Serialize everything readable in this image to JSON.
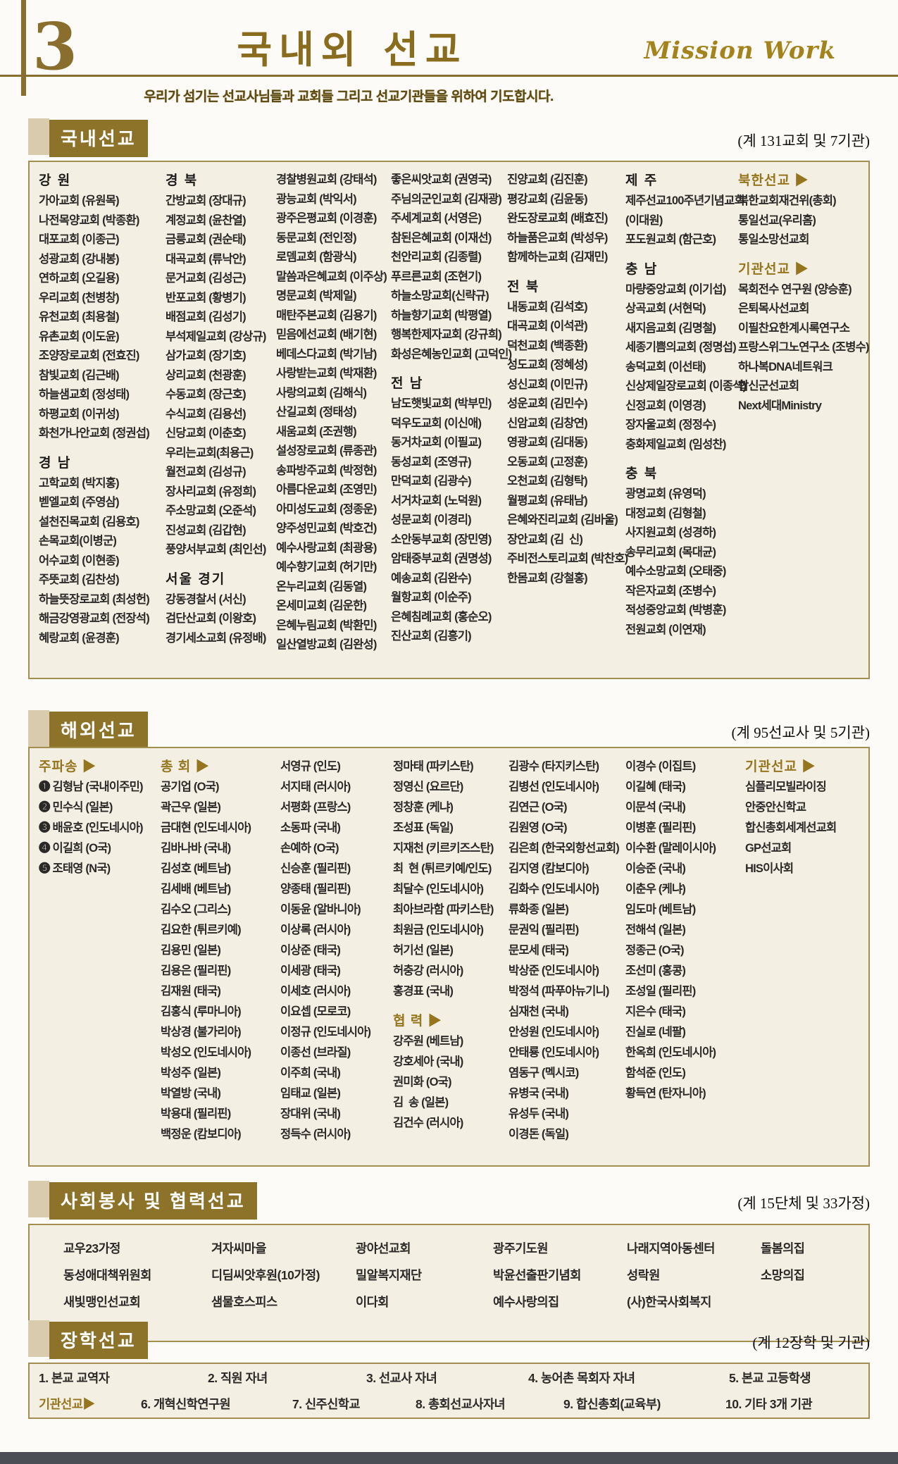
{
  "page": {
    "number": "3",
    "title": "국내외 선교",
    "title_en": "Mission Work",
    "subtitle": "우리가 섬기는 선교사님들과 교회들 그리고 선교기관들을 위하여 기도합시다."
  },
  "colors": {
    "gold": "#8a6e2e",
    "label_bg": "#8d7229",
    "box_bg": "#f3efe3",
    "box_border": "#a58e52"
  },
  "sections": {
    "domestic": {
      "label": "국내선교",
      "count": "(계 131교회 및 7기관)",
      "columns": [
        [
          {
            "header": "강 원",
            "type": "region",
            "items": [
              "가아교회 (유원목)",
              "나전목양교회 (박종환)",
              "대포교회 (이종근)",
              "성광교회 (강내봉)",
              "연하교회 (오길용)",
              "우리교회 (천병창)",
              "유천교회 (최용철)",
              "유촌교회 (이도윤)",
              "조양장로교회 (전효진)",
              "참빛교회 (김근배)",
              "하늘샘교회 (정성태)",
              "하평교회 (이귀성)",
              "화천가나안교회 (정권섭)"
            ]
          },
          {
            "header": "경 남",
            "type": "region",
            "items": [
              "고학교회 (박지홍)",
              "벧엘교회 (주영삼)",
              "설천진목교회 (김용호)",
              "손목교회(이병군)",
              "어수교회 (이현종)",
              "주뜻교회 (김찬성)",
              "하늘뜻장로교회 (최성헌)",
              "해금강영광교회 (전장석)",
              "혜랑교회 (윤경훈)"
            ]
          }
        ],
        [
          {
            "header": "경 북",
            "type": "region",
            "items": [
              "간방교회 (장대규)",
              "계정교회 (윤찬열)",
              "금릉교회 (권순태)",
              "대곡교회 (류낙안)",
              "문거교회 (김성근)",
              "반포교회 (황병기)",
              "배점교회 (김성기)",
              "부석제일교회 (강상규)",
              "삼가교회 (장기호)",
              "상리교회 (천광훈)",
              "수동교회 (장근호)",
              "수식교회 (김용선)",
              "신당교회 (이춘호)",
              "우리는교회(최용근)",
              "월전교회 (김성규)",
              "장사리교회 (유정희)",
              "주소망교회 (오준석)",
              "진성교회 (김갑현)",
              "풍양서부교회 (최인선)"
            ]
          },
          {
            "header": "서울 경기",
            "type": "region",
            "items": [
              "강동경찰서 (서신)",
              "검단산교회 (이왕호)",
              "경기세소교회 (유정배)"
            ]
          }
        ],
        [
          {
            "items": [
              "경찰병원교회 (강태석)",
              "광능교회 (박익서)",
              "광주은평교회 (이경훈)",
              "동문교회 (전인정)",
              "로뎀교회 (함광식)",
              "말씀과은혜교회 (이주상)",
              "명문교회 (박제일)",
              "매탄주본교회 (김용기)",
              "믿음에선교회 (배기현)",
              "베데스다교회 (박기남)",
              "사랑받는교회 (박재환)",
              "사랑의교회 (김해식)",
              "산길교회 (정태성)",
              "새움교회 (조권행)",
              "설성장로교회 (류종관)",
              "송파방주교회 (박정현)",
              "아름다운교회 (조영민)",
              "아미성도교회 (정종운)",
              "양주성민교회 (박호건)",
              "예수사랑교회 (최광용)",
              "예수향기교회 (허기만)",
              "온누리교회 (김동열)",
              "온세미교회 (김운한)",
              "은혜누림교회 (박환민)",
              "일산열방교회 (김완성)"
            ]
          }
        ],
        [
          {
            "items": [
              "좋은씨앗교회 (권영국)",
              "주님의군인교회 (김재광)",
              "주세계교회 (서영은)",
              "참된은혜교회 (이재선)",
              "천안리교회 (김종렬)",
              "푸르른교회 (조현기)",
              "하늘소망교회(신략규)",
              "하늘향기교회 (박평열)",
              "행복한제자교회 (강규희)",
              "화성은혜농인교회 (고덕인)"
            ]
          },
          {
            "header": "전 남",
            "type": "region",
            "items": [
              "남도햇빛교회 (박부민)",
              "덕우도교회 (이신애)",
              "동거차교회 (이필교)",
              "동성교회 (조영규)",
              "만덕교회 (김광수)",
              "서거차교회 (노덕원)",
              "성문교회 (이경리)",
              "소안동부교회 (장민영)",
              "암태중부교회 (권명성)",
              "예송교회 (김완수)",
              "월항교회 (이순주)",
              "은혜침례교회 (홍순오)",
              "진산교회 (김흥기)"
            ]
          }
        ],
        [
          {
            "items": [
              "진양교회 (김진훈)",
              "평강교회 (김윤동)",
              "완도장로교회 (배효진)",
              "하늘품은교회 (박성우)",
              "함께하는교회 (김재민)"
            ]
          },
          {
            "header": "전 북",
            "type": "region",
            "items": [
              "내동교회 (김석호)",
              "대곡교회 (이석관)",
              "덕천교회 (백종환)",
              "성도교회 (정혜성)",
              "성신교회 (이민규)",
              "성운교회 (김민수)",
              "신암교회 (김창연)",
              "영광교회 (김대동)",
              "오동교회 (고정훈)",
              "오천교회 (김형탁)",
              "월평교회 (유태남)",
              "은혜와진리교회 (김바울)",
              "장안교회 (김  신)",
              "주비전스토리교회 (박찬호)",
              "한몸교회 (강철홍)"
            ]
          }
        ],
        [
          {
            "header": "제 주",
            "type": "region",
            "items": [
              "제주선교100주년기념교회",
              "(이대원)",
              "포도원교회 (함근호)"
            ]
          },
          {
            "header": "충 남",
            "type": "region",
            "items": [
              "마량중앙교회 (이기섭)",
              "상곡교회 (서현덕)",
              "새지음교회 (김명철)",
              "세종기쁨의교회 (정명섭)",
              "송덕교회 (이선태)",
              "신상제일장로교회 (이종석)",
              "신정교회 (이영경)",
              "장자울교회 (정정수)",
              "충화제일교회 (임성찬)"
            ]
          },
          {
            "header": "충 북",
            "type": "region",
            "items": [
              "광명교회 (유영덕)",
              "대정교회 (김형철)",
              "사지원교회 (성경하)",
              "송무리교회 (목대균)",
              "예수소망교회 (오태중)",
              "작은자교회 (조병수)",
              "적성중앙교회 (박병훈)",
              "전원교회 (이연재)"
            ]
          }
        ],
        [
          {
            "header": "북한선교 ▶",
            "type": "gold",
            "items": [
              "북한교회재건위(총회)",
              "통일선교(우리홈)",
              "통일소망선교회"
            ]
          },
          {
            "header": "기관선교 ▶",
            "type": "gold",
            "items": [
              "목회전수 연구원 (양승훈)",
              "은퇴목사선교회",
              "이필찬요한계시록연구소",
              "프랑스위그노연구소 (조병수)",
              "하나복DNA네트워크",
              "합신군선교회",
              "Next세대Ministry"
            ]
          }
        ]
      ]
    },
    "overseas": {
      "label": "해외선교",
      "count": "(계 95선교사 및 5기관)",
      "columns": [
        [
          {
            "header": "주파송 ▶",
            "type": "gold",
            "items": [
              "❶ 김형남 (국내이주민)",
              "❷ 민수식 (일본)",
              "❸ 배윤호 (인도네시아)",
              "❹ 이길희 (O국)",
              "❺ 조태영 (N국)"
            ]
          }
        ],
        [
          {
            "header": "총 회 ▶",
            "type": "gold",
            "items": [
              "공기업 (O국)",
              "곽근우 (일본)",
              "금대현 (인도네시아)",
              "김바나바 (국내)",
              "김성호 (베트남)",
              "김세배 (베트남)",
              "김수오 (그리스)",
              "김요한 (튀르키예)",
              "김용민 (일본)",
              "김용은 (필리핀)",
              "김재원 (태국)",
              "김홍식 (루마니아)",
              "박상경 (불가리아)",
              "박성오 (인도네시아)",
              "박성주 (일본)",
              "박열방 (국내)",
              "박용대 (필리핀)",
              "백정운 (캄보디아)"
            ]
          }
        ],
        [
          {
            "items": [
              "서영규 (인도)",
              "서지태 (러시아)",
              "서평화 (프랑스)",
              "소동파 (국내)",
              "손예하 (O국)",
              "신승훈 (필리핀)",
              "양종태 (필리핀)",
              "이동윤 (알바니아)",
              "이상록 (러시아)",
              "이상준 (태국)",
              "이세광 (태국)",
              "이세호 (러시아)",
              "이요셉 (모로코)",
              "이정규 (인도네시아)",
              "이종선 (브라질)",
              "이주희 (국내)",
              "임태교 (일본)",
              "장대위 (국내)",
              "정득수 (러시아)"
            ]
          }
        ],
        [
          {
            "items": [
              "정마태 (파키스탄)",
              "정영신 (요르단)",
              "정창훈 (케냐)",
              "조성표 (독일)",
              "지재천 (키르키즈스탄)",
              "최  현 (튀르키예/인도)",
              "최달수 (인도네시아)",
              "최아브라함 (파키스탄)",
              "최원금 (인도네시아)",
              "허기선 (일본)",
              "허충강 (러시아)",
              "홍경표 (국내)"
            ]
          },
          {
            "header": "협 력 ▶",
            "type": "gold",
            "items": [
              "강주원 (베트남)",
              "강호세아 (국내)",
              "권미화 (O국)",
              "김  송 (일본)",
              "김건수 (러시아)"
            ]
          }
        ],
        [
          {
            "items": [
              "김광수 (타지키스탄)",
              "김병선 (인도네시아)",
              "김연근 (O국)",
              "김원영 (O국)",
              "김은희 (한국외항선교회)",
              "김지영 (캄보디아)",
              "김화수 (인도네시아)",
              "류화종 (일본)",
              "문권익 (필리핀)",
              "문모세 (태국)",
              "박상준 (인도네시아)",
              "박정석 (파푸아뉴기니)",
              "심재천 (국내)",
              "안성원 (인도네시아)",
              "안태룡 (인도네시아)",
              "염동구 (멕시코)",
              "유병국 (국내)",
              "유성두 (국내)",
              "이경돈 (독일)"
            ]
          }
        ],
        [
          {
            "items": [
              "이경수 (이집트)",
              "이길혜 (태국)",
              "이문석 (국내)",
              "이병훈 (필리핀)",
              "이수환 (말레이시아)",
              "이승준 (국내)",
              "이춘우 (케냐)",
              "임도마 (베트남)",
              "전해석 (일본)",
              "정종근 (O국)",
              "조선미 (홍콩)",
              "조성일 (필리핀)",
              "지은수 (태국)",
              "진실로 (네팔)",
              "한옥희 (인도네시아)",
              "함석준 (인도)",
              "황득연 (탄자니아)"
            ]
          }
        ],
        [
          {
            "header": "기관선교 ▶",
            "type": "gold",
            "items": [
              "심플리모빌라이징",
              "안중안신학교",
              "합신총회세계선교회",
              "GP선교회",
              "HIS이사회"
            ]
          }
        ]
      ]
    },
    "social": {
      "label": "사회봉사 및 협력선교",
      "count": "(계 15단체 및 33가정)",
      "columns": [
        [
          {
            "items": [
              "교우23가정",
              "동성애대책위원회",
              "새빛맹인선교회"
            ]
          }
        ],
        [
          {
            "items": [
              "겨자씨마을",
              "디딤씨앗후원(10가정)",
              "샘물호스피스"
            ]
          }
        ],
        [
          {
            "items": [
              "광야선교회",
              "밀알복지재단",
              "이다회"
            ]
          }
        ],
        [
          {
            "items": [
              "광주기도원",
              "박윤선출판기념회",
              "예수사랑의집"
            ]
          }
        ],
        [
          {
            "items": [
              "나래지역아동센터",
              "성락원",
              "(사)한국사회복지"
            ]
          }
        ],
        [
          {
            "items": [
              "돌봄의집",
              "소망의집"
            ]
          }
        ]
      ]
    },
    "scholarship": {
      "label": "장학선교",
      "count": "(계 12장학 및 기관)",
      "rows": [
        {
          "cells": [
            {
              "text": "1. 본교 교역자"
            },
            {
              "text": "2. 직원 자녀"
            },
            {
              "text": "3. 선교사 자녀"
            },
            {
              "text": "4. 농어촌 목회자 자녀"
            },
            {
              "text": "5. 본교 고등학생"
            }
          ]
        },
        {
          "cells": [
            {
              "text": "기관선교▶",
              "gold": true
            },
            {
              "text": "6. 개혁신학연구원"
            },
            {
              "text": "7. 신주신학교"
            },
            {
              "text": "8. 총회선교사자녀"
            },
            {
              "text": "9. 합신총회(교육부)"
            },
            {
              "text": "10. 기타 3개 기관"
            }
          ]
        }
      ]
    }
  }
}
